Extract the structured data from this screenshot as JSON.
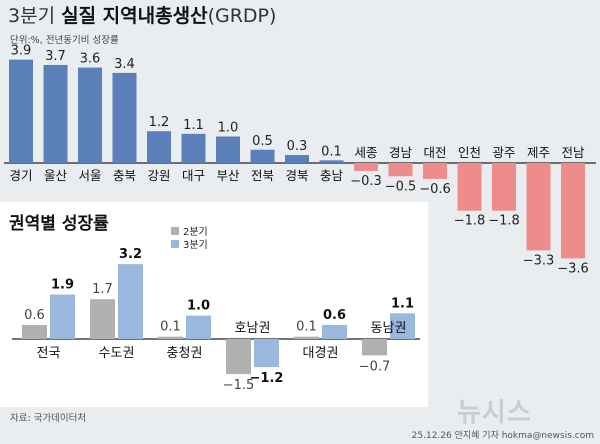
{
  "title": {
    "part1": "3분기",
    "part2": "실질 지역내총생산",
    "part3": "(GRDP)"
  },
  "subtitle": "단위:%,  전년동기비 성장률",
  "colors": {
    "positive": "#5b7fb8",
    "negative": "#ee8c8c",
    "q2": "#b0b0b0",
    "q3": "#9ab7de",
    "panel": "#ffffff",
    "background": "#e9edf0"
  },
  "chart_data": [
    {
      "type": "bar",
      "title": "3분기 실질 지역내총생산(GRDP)",
      "categories": [
        "경기",
        "울산",
        "서울",
        "충북",
        "강원",
        "대구",
        "부산",
        "전북",
        "경북",
        "충남",
        "세종",
        "경남",
        "대전",
        "인천",
        "광주",
        "제주",
        "전남"
      ],
      "values": [
        3.9,
        3.7,
        3.6,
        3.4,
        1.2,
        1.1,
        1.0,
        0.5,
        0.3,
        0.1,
        -0.3,
        -0.5,
        -0.6,
        -1.8,
        -1.8,
        -3.3,
        -3.6
      ],
      "value_labels": [
        "3.9",
        "3.7",
        "3.6",
        "3.4",
        "1.2",
        "1.1",
        "1.0",
        "0.5",
        "0.3",
        "0.1",
        "−0.3",
        "−0.5",
        "−0.6",
        "−1.8",
        "−1.8",
        "−3.3",
        "−3.6"
      ],
      "ylim": [
        -4,
        4.2
      ],
      "unit": "%"
    },
    {
      "type": "bar",
      "title": "권역별 성장률",
      "categories": [
        "전국",
        "수도권",
        "충청권",
        "호남권",
        "대경권",
        "동남권"
      ],
      "series": [
        {
          "name": "2분기",
          "values": [
            0.6,
            1.7,
            0.1,
            -1.5,
            0.1,
            -0.7
          ],
          "labels": [
            "0.6",
            "1.7",
            "0.1",
            "−1.5",
            "0.1",
            "−0.7"
          ]
        },
        {
          "name": "3분기",
          "values": [
            1.9,
            3.2,
            1.0,
            -1.2,
            0.6,
            1.1
          ],
          "labels": [
            "1.9",
            "3.2",
            "1.0",
            "−1.2",
            "0.6",
            "1.1"
          ]
        }
      ],
      "legend": "top-left",
      "ylim": [
        -1.7,
        3.3
      ]
    }
  ],
  "footer": {
    "source": "자료: 국가데이터처",
    "credit": "25.12.26 안지혜 기자 hokma@newsis.com",
    "logo": "뉴시스"
  }
}
